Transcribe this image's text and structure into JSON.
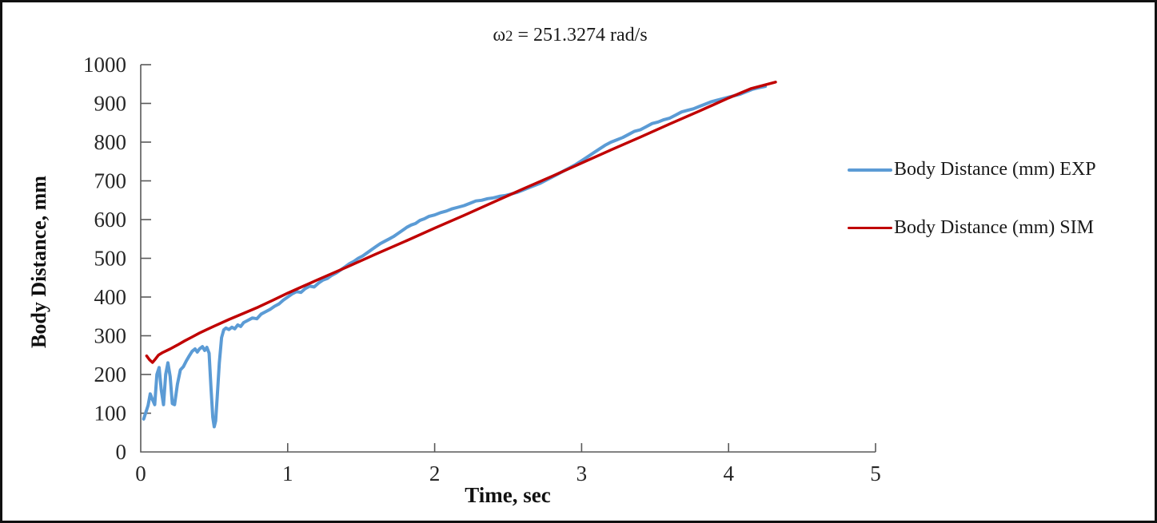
{
  "figure": {
    "title_omega": "ω",
    "title_sub": "2",
    "title_rest": " = 251.3274 rad/s"
  },
  "chart_data": {
    "type": "line",
    "title": "ω2 = 251.3274 rad/s",
    "xlabel": "Time, sec",
    "ylabel": "Body Distance, mm",
    "xlim": [
      0,
      5
    ],
    "ylim": [
      0,
      1000
    ],
    "xticks": [
      0,
      1,
      2,
      3,
      4,
      5
    ],
    "yticks": [
      0,
      100,
      200,
      300,
      400,
      500,
      600,
      700,
      800,
      900,
      1000
    ],
    "grid": false,
    "legend_position": "right",
    "axis_color": "#595959",
    "tick_label_color": "#262626",
    "series": [
      {
        "name": "Body Distance (mm) EXP",
        "color": "#5B9BD5",
        "width": 4,
        "points": [
          [
            0.02,
            85
          ],
          [
            0.05,
            120
          ],
          [
            0.065,
            150
          ],
          [
            0.08,
            135
          ],
          [
            0.095,
            122
          ],
          [
            0.11,
            200
          ],
          [
            0.125,
            218
          ],
          [
            0.14,
            160
          ],
          [
            0.155,
            122
          ],
          [
            0.17,
            200
          ],
          [
            0.185,
            230
          ],
          [
            0.2,
            195
          ],
          [
            0.215,
            125
          ],
          [
            0.23,
            122
          ],
          [
            0.25,
            175
          ],
          [
            0.27,
            212
          ],
          [
            0.29,
            220
          ],
          [
            0.31,
            235
          ],
          [
            0.33,
            248
          ],
          [
            0.35,
            260
          ],
          [
            0.37,
            266
          ],
          [
            0.385,
            258
          ],
          [
            0.4,
            266
          ],
          [
            0.42,
            272
          ],
          [
            0.435,
            262
          ],
          [
            0.45,
            270
          ],
          [
            0.465,
            255
          ],
          [
            0.478,
            165
          ],
          [
            0.49,
            90
          ],
          [
            0.5,
            65
          ],
          [
            0.51,
            80
          ],
          [
            0.52,
            140
          ],
          [
            0.535,
            230
          ],
          [
            0.55,
            295
          ],
          [
            0.565,
            315
          ],
          [
            0.58,
            320
          ],
          [
            0.6,
            316
          ],
          [
            0.62,
            322
          ],
          [
            0.64,
            318
          ],
          [
            0.66,
            328
          ],
          [
            0.68,
            324
          ],
          [
            0.7,
            334
          ],
          [
            0.73,
            340
          ],
          [
            0.76,
            346
          ],
          [
            0.79,
            344
          ],
          [
            0.82,
            356
          ],
          [
            0.85,
            362
          ],
          [
            0.88,
            368
          ],
          [
            0.91,
            376
          ],
          [
            0.94,
            382
          ],
          [
            0.97,
            392
          ],
          [
            1.0,
            400
          ],
          [
            1.03,
            408
          ],
          [
            1.06,
            414
          ],
          [
            1.09,
            412
          ],
          [
            1.12,
            422
          ],
          [
            1.15,
            428
          ],
          [
            1.18,
            426
          ],
          [
            1.21,
            436
          ],
          [
            1.24,
            444
          ],
          [
            1.27,
            448
          ],
          [
            1.3,
            456
          ],
          [
            1.33,
            462
          ],
          [
            1.36,
            470
          ],
          [
            1.39,
            478
          ],
          [
            1.42,
            486
          ],
          [
            1.45,
            492
          ],
          [
            1.48,
            500
          ],
          [
            1.51,
            506
          ],
          [
            1.54,
            514
          ],
          [
            1.57,
            522
          ],
          [
            1.6,
            530
          ],
          [
            1.63,
            538
          ],
          [
            1.66,
            544
          ],
          [
            1.69,
            550
          ],
          [
            1.72,
            556
          ],
          [
            1.75,
            564
          ],
          [
            1.78,
            572
          ],
          [
            1.81,
            580
          ],
          [
            1.84,
            586
          ],
          [
            1.87,
            590
          ],
          [
            1.9,
            598
          ],
          [
            1.93,
            602
          ],
          [
            1.96,
            608
          ],
          [
            2.0,
            612
          ],
          [
            2.04,
            618
          ],
          [
            2.08,
            622
          ],
          [
            2.12,
            628
          ],
          [
            2.16,
            632
          ],
          [
            2.2,
            636
          ],
          [
            2.24,
            642
          ],
          [
            2.28,
            648
          ],
          [
            2.32,
            650
          ],
          [
            2.36,
            654
          ],
          [
            2.4,
            656
          ],
          [
            2.44,
            660
          ],
          [
            2.48,
            662
          ],
          [
            2.52,
            666
          ],
          [
            2.56,
            670
          ],
          [
            2.6,
            676
          ],
          [
            2.64,
            682
          ],
          [
            2.68,
            688
          ],
          [
            2.72,
            694
          ],
          [
            2.76,
            702
          ],
          [
            2.8,
            710
          ],
          [
            2.84,
            718
          ],
          [
            2.88,
            726
          ],
          [
            2.92,
            734
          ],
          [
            2.96,
            742
          ],
          [
            3.0,
            752
          ],
          [
            3.04,
            762
          ],
          [
            3.08,
            772
          ],
          [
            3.12,
            782
          ],
          [
            3.16,
            792
          ],
          [
            3.2,
            800
          ],
          [
            3.24,
            806
          ],
          [
            3.28,
            812
          ],
          [
            3.32,
            820
          ],
          [
            3.36,
            828
          ],
          [
            3.4,
            832
          ],
          [
            3.44,
            840
          ],
          [
            3.48,
            848
          ],
          [
            3.52,
            852
          ],
          [
            3.56,
            858
          ],
          [
            3.6,
            862
          ],
          [
            3.64,
            870
          ],
          [
            3.68,
            878
          ],
          [
            3.72,
            882
          ],
          [
            3.76,
            886
          ],
          [
            3.8,
            892
          ],
          [
            3.84,
            898
          ],
          [
            3.88,
            904
          ],
          [
            3.92,
            908
          ],
          [
            3.96,
            912
          ],
          [
            4.0,
            916
          ],
          [
            4.04,
            920
          ],
          [
            4.08,
            924
          ],
          [
            4.12,
            930
          ],
          [
            4.16,
            936
          ],
          [
            4.2,
            940
          ],
          [
            4.25,
            944
          ]
        ]
      },
      {
        "name": "Body Distance (mm) SIM",
        "color": "#C00000",
        "width": 3.5,
        "points": [
          [
            0.04,
            248
          ],
          [
            0.06,
            238
          ],
          [
            0.08,
            231
          ],
          [
            0.1,
            240
          ],
          [
            0.12,
            250
          ],
          [
            0.15,
            257
          ],
          [
            0.2,
            266
          ],
          [
            0.25,
            276
          ],
          [
            0.3,
            287
          ],
          [
            0.35,
            297
          ],
          [
            0.4,
            307
          ],
          [
            0.45,
            316
          ],
          [
            0.5,
            325
          ],
          [
            0.6,
            342
          ],
          [
            0.7,
            358
          ],
          [
            0.8,
            374
          ],
          [
            0.9,
            392
          ],
          [
            1.0,
            410
          ],
          [
            1.2,
            444
          ],
          [
            1.4,
            477
          ],
          [
            1.6,
            511
          ],
          [
            1.8,
            544
          ],
          [
            2.0,
            578
          ],
          [
            2.2,
            611
          ],
          [
            2.4,
            645
          ],
          [
            2.6,
            679
          ],
          [
            2.8,
            712
          ],
          [
            3.0,
            746
          ],
          [
            3.2,
            780
          ],
          [
            3.4,
            813
          ],
          [
            3.6,
            847
          ],
          [
            3.8,
            880
          ],
          [
            4.0,
            914
          ],
          [
            4.15,
            938
          ],
          [
            4.32,
            955
          ]
        ]
      }
    ]
  }
}
